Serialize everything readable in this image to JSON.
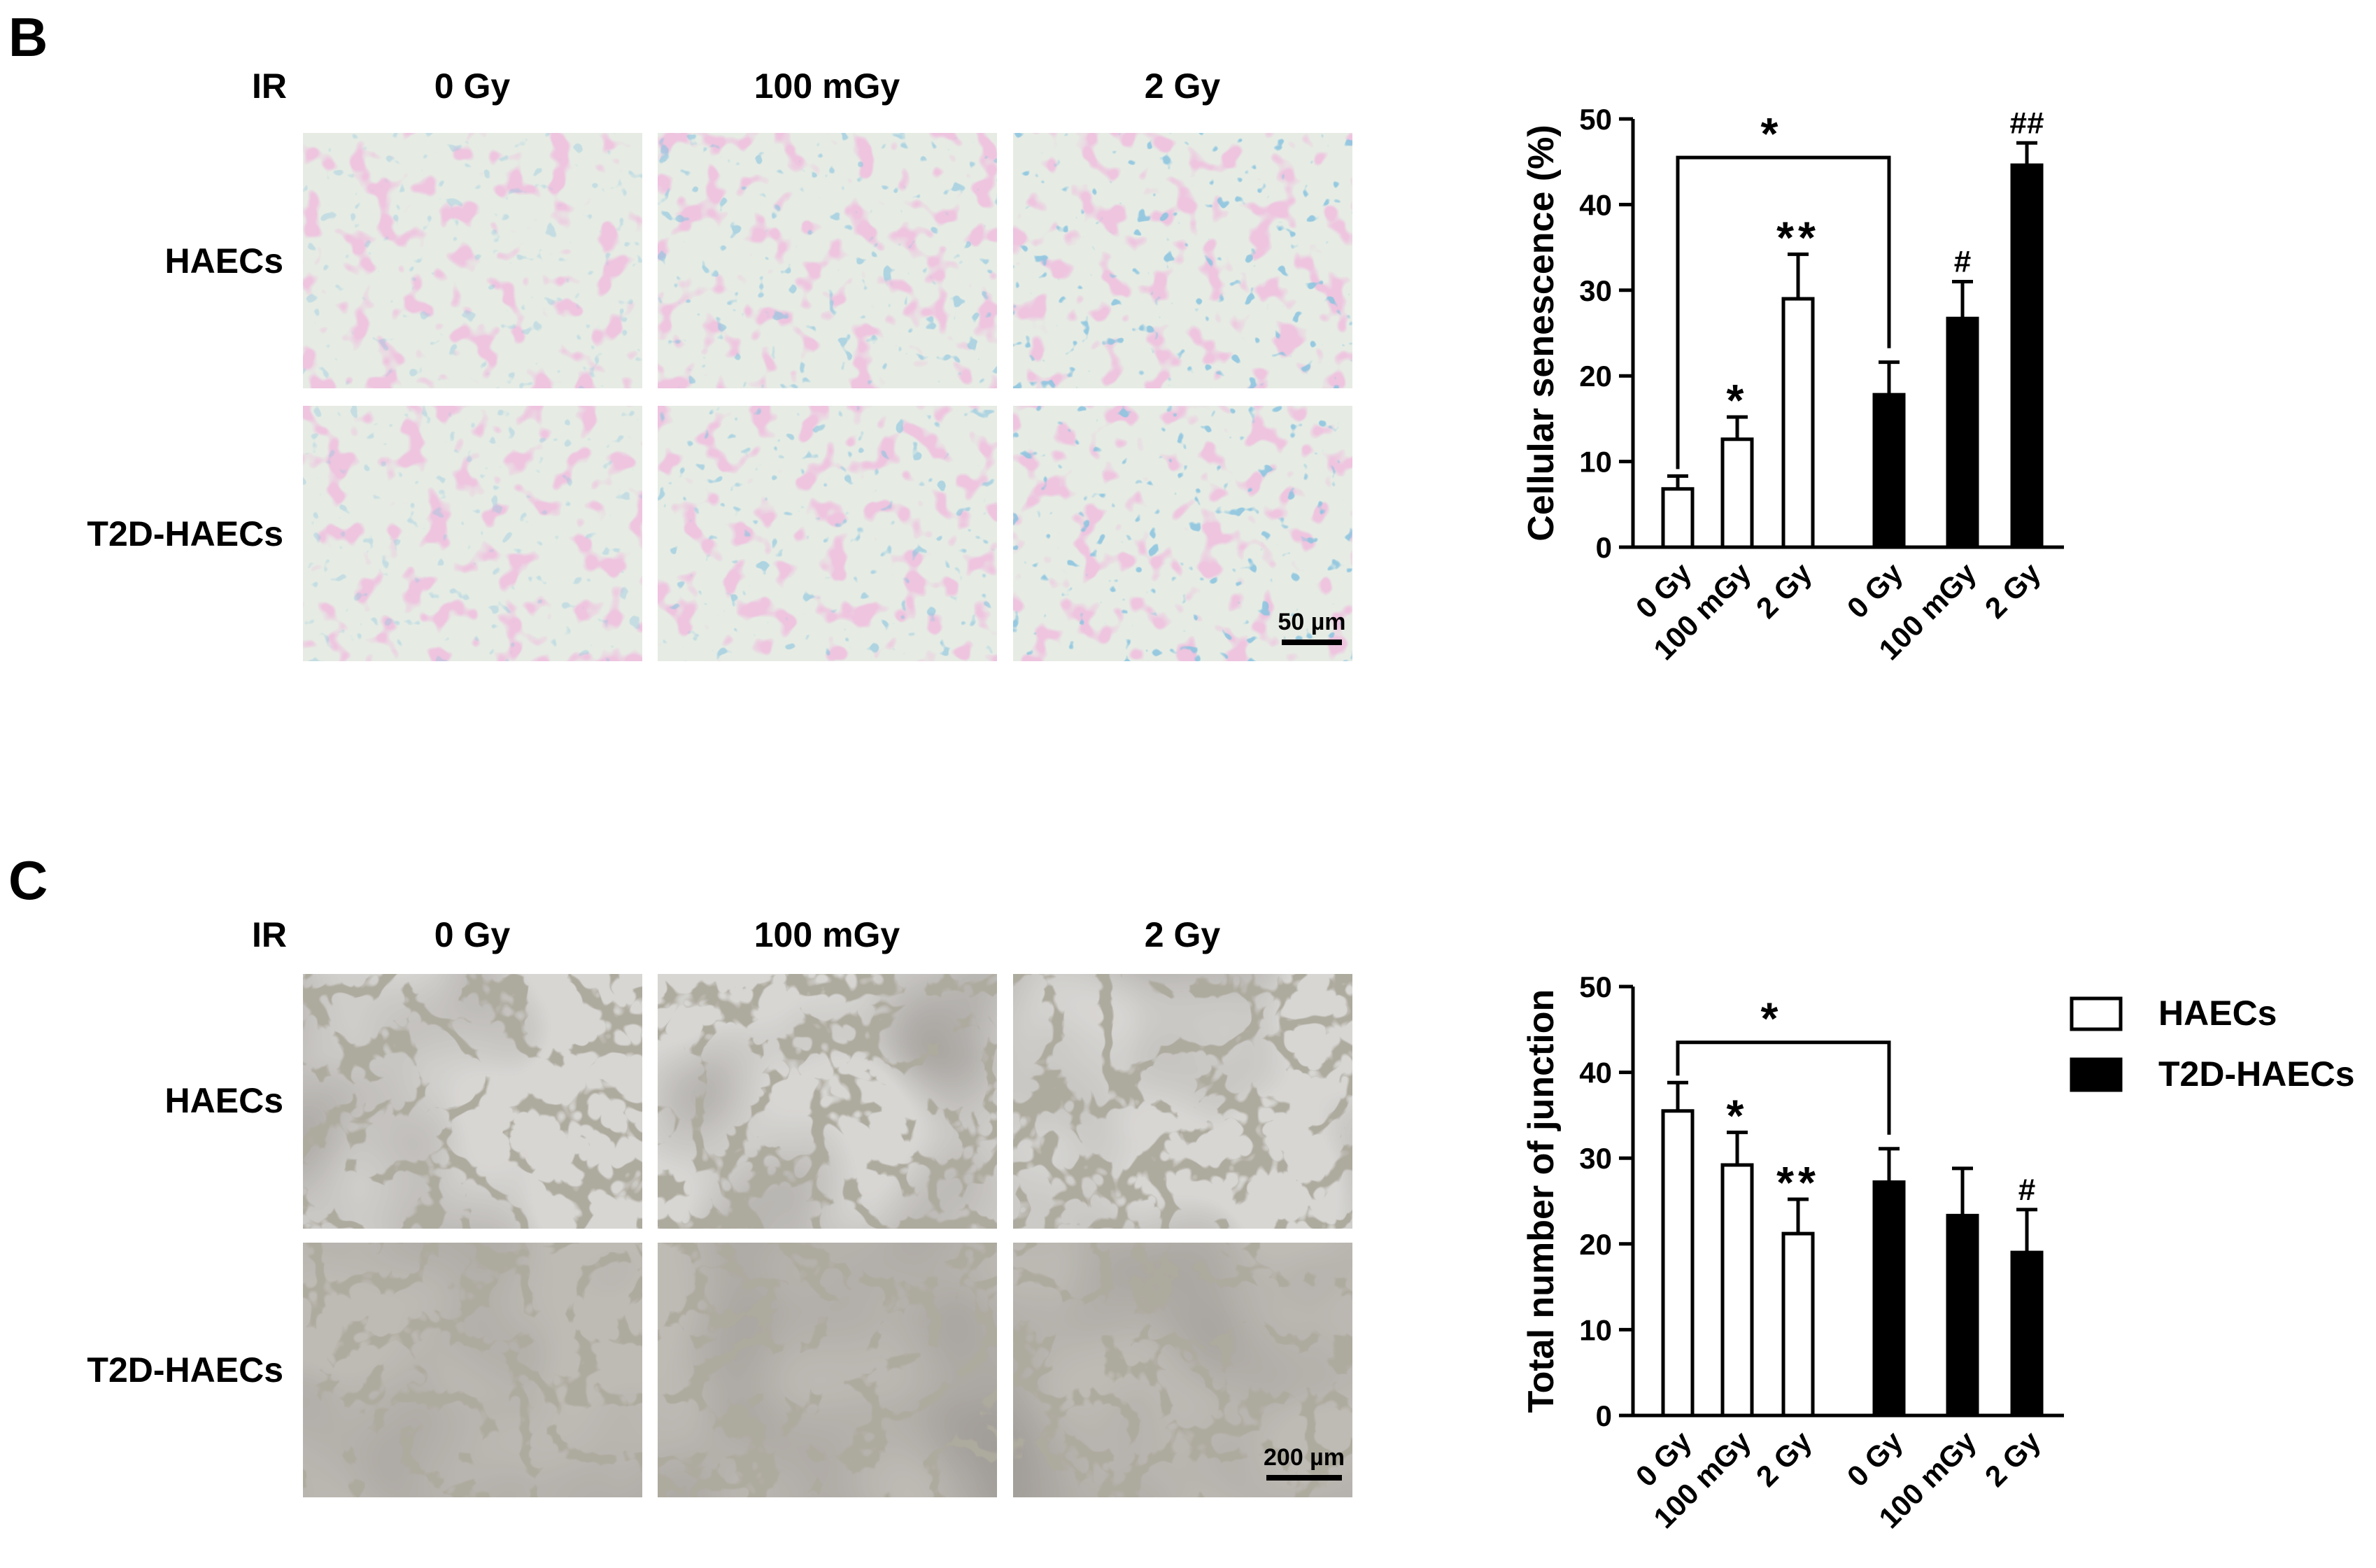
{
  "panels": [
    {
      "letter": "B",
      "ir_label": "IR",
      "columns": [
        "0 Gy",
        "100 mGy",
        "2 Gy"
      ],
      "rows": [
        "HAECs",
        "T2D-HAECs"
      ],
      "scale_bar": "50 µm"
    },
    {
      "letter": "C",
      "ir_label": "IR",
      "columns": [
        "0 Gy",
        "100 mGy",
        "2 Gy"
      ],
      "rows": [
        "HAECs",
        "T2D-HAECs"
      ],
      "scale_bar": "200 µm"
    }
  ],
  "legend": {
    "items": [
      {
        "label": "HAECs",
        "fill": "#ffffff"
      },
      {
        "label": "T2D-HAECs",
        "fill": "#000000"
      }
    ]
  },
  "chart_data": [
    {
      "type": "bar",
      "ylabel": "Cellular senescence (%)",
      "ylim": [
        0,
        50
      ],
      "yticks": [
        0,
        10,
        20,
        30,
        40,
        50
      ],
      "groups": [
        {
          "name": "HAECs",
          "fill": "#ffffff",
          "categories": [
            "0 Gy",
            "100 mGy",
            "2 Gy"
          ],
          "values": [
            6.8,
            12.6,
            29.0
          ],
          "errors": [
            1.5,
            2.6,
            5.2
          ],
          "marks": [
            "",
            "*",
            "**"
          ]
        },
        {
          "name": "T2D-HAECs",
          "fill": "#000000",
          "categories": [
            "0 Gy",
            "100 mGy",
            "2 Gy"
          ],
          "values": [
            17.8,
            26.7,
            44.6
          ],
          "errors": [
            3.8,
            4.3,
            2.6
          ],
          "marks": [
            "",
            "#",
            "##"
          ]
        }
      ],
      "bracket": {
        "label": "*",
        "level": 45.5
      }
    },
    {
      "type": "bar",
      "ylabel": "Total number of junction",
      "ylim": [
        0,
        50
      ],
      "yticks": [
        0,
        10,
        20,
        30,
        40,
        50
      ],
      "groups": [
        {
          "name": "HAECs",
          "fill": "#ffffff",
          "categories": [
            "0 Gy",
            "100 mGy",
            "2 Gy"
          ],
          "values": [
            35.5,
            29.2,
            21.2
          ],
          "errors": [
            3.3,
            3.8,
            4.0
          ],
          "marks": [
            "",
            "*",
            "**"
          ]
        },
        {
          "name": "T2D-HAECs",
          "fill": "#000000",
          "categories": [
            "0 Gy",
            "100 mGy",
            "2 Gy"
          ],
          "values": [
            27.2,
            23.3,
            19.0
          ],
          "errors": [
            3.9,
            5.5,
            5.0
          ],
          "marks": [
            "",
            "",
            "#"
          ]
        }
      ],
      "bracket": {
        "label": "*",
        "level": 43.5
      }
    }
  ]
}
